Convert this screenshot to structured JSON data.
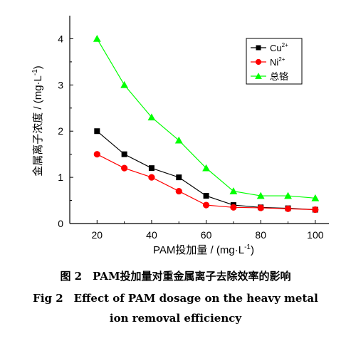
{
  "chart_data": {
    "type": "line",
    "x": [
      20,
      30,
      40,
      50,
      60,
      70,
      80,
      90,
      100
    ],
    "series": [
      {
        "name": "Cu",
        "superscript": "2+",
        "marker": "square",
        "color": "#000000",
        "values": [
          2.0,
          1.5,
          1.2,
          1.0,
          0.6,
          0.4,
          0.35,
          0.33,
          0.3
        ]
      },
      {
        "name": "Ni",
        "superscript": "2+",
        "marker": "circle",
        "color": "#ff0000",
        "values": [
          1.5,
          1.2,
          1.0,
          0.7,
          0.4,
          0.35,
          0.34,
          0.32,
          0.3
        ]
      },
      {
        "name": "总铬",
        "superscript": "",
        "marker": "triangle",
        "color": "#00ff00",
        "values": [
          4.0,
          3.0,
          2.3,
          1.8,
          1.2,
          0.7,
          0.6,
          0.6,
          0.55
        ]
      }
    ],
    "xlabel": "PAM投加量 / (mg·L",
    "xlabel_sup": "-1",
    "xlabel_end": ")",
    "ylabel": "金属离子浓度 / (mg·L",
    "ylabel_sup": "-1",
    "ylabel_end": ")",
    "xlim": [
      10,
      105
    ],
    "ylim": [
      0,
      4.5
    ],
    "xticks": [
      20,
      40,
      60,
      80,
      100
    ],
    "yticks": [
      0,
      1,
      2,
      3,
      4
    ],
    "grid": false,
    "legend": "top-right"
  },
  "caption": {
    "cn": "图 2　PAM投加量对重金属离子去除效率的影响",
    "en_line1": "Fig 2　Effect of PAM dosage on the heavy metal",
    "en_line2": "ion removal efficiency"
  }
}
